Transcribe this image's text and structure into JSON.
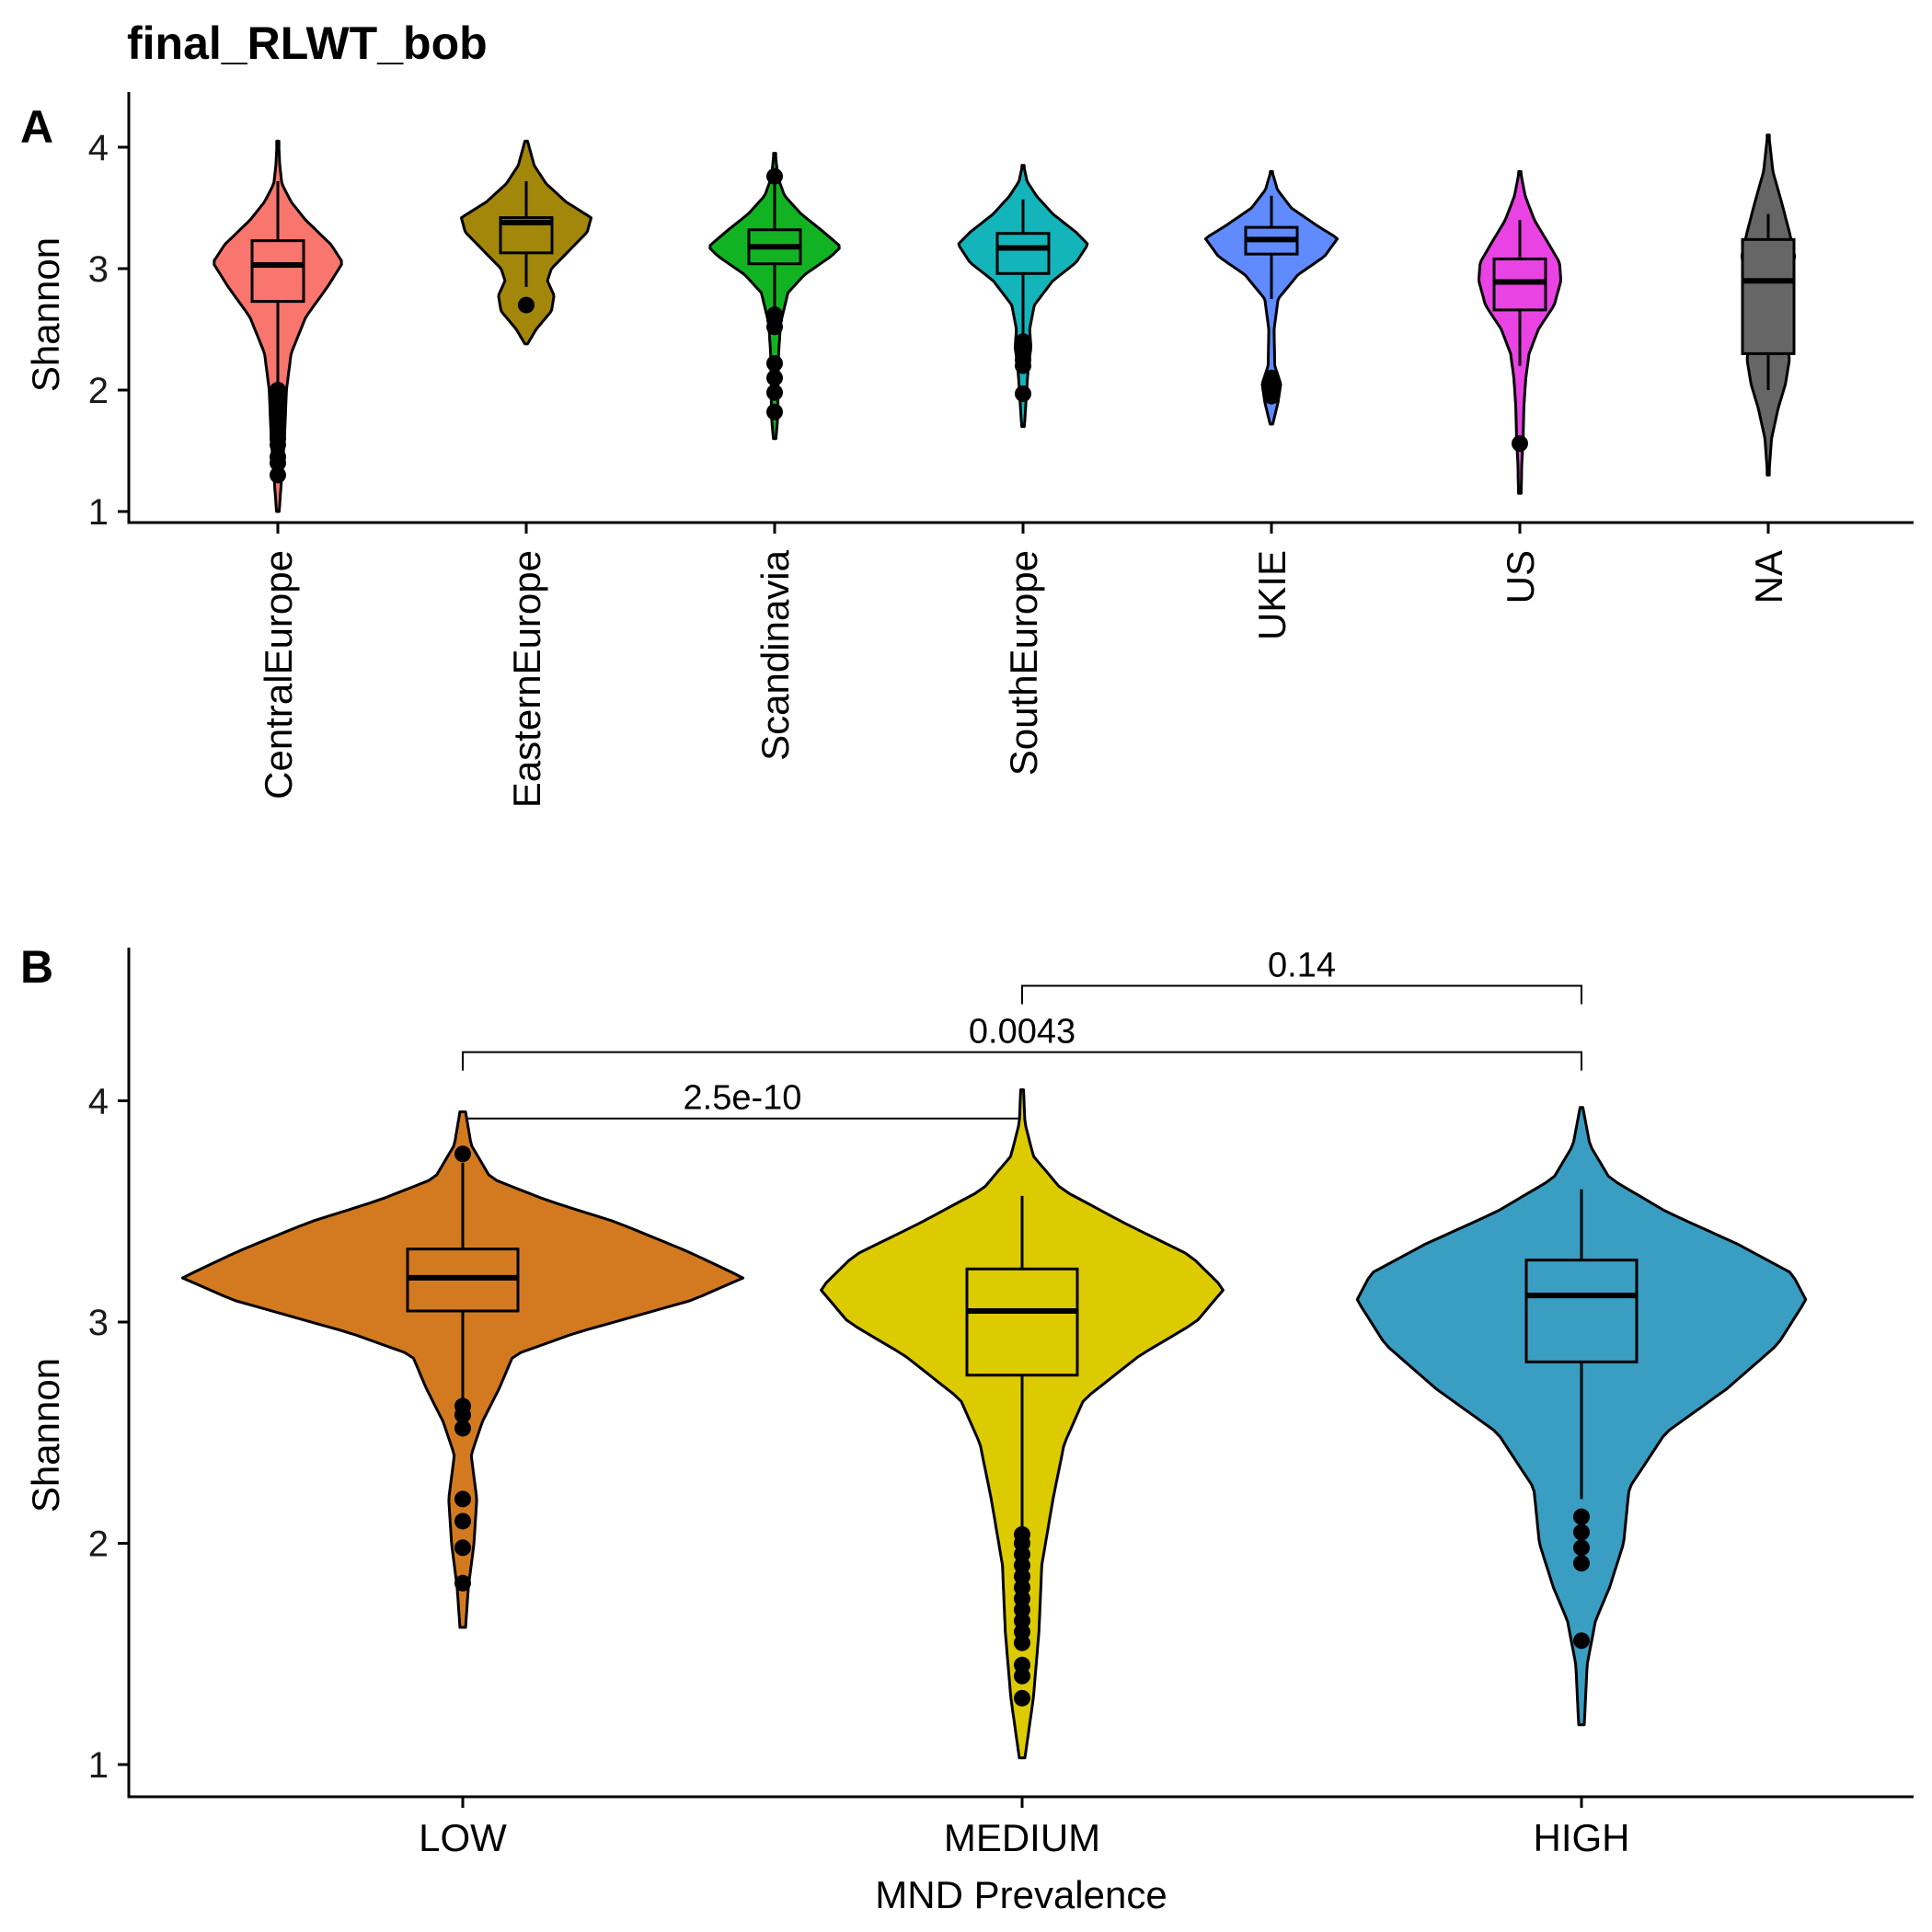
{
  "title": "final_RLWT_bob",
  "chart_data": [
    {
      "panel_label": "A",
      "type": "violin",
      "ylabel": "Shannon",
      "xlabel": "",
      "ylim": [
        0.95,
        4.2
      ],
      "yticks": [
        1,
        2,
        3,
        4
      ],
      "grid": false,
      "legend": "none",
      "categories": [
        "CentralEurope",
        "EasternEurope",
        "Scandinavia",
        "SouthEurope",
        "UKIE",
        "US",
        "NA"
      ],
      "groups": [
        {
          "name": "CentralEurope",
          "color": "#F8766D",
          "min": 1.0,
          "max": 4.05,
          "whisker_low": 2.05,
          "q1": 2.73,
          "median": 3.03,
          "q3": 3.23,
          "whisker_high": 3.72,
          "outliers": [
            1.3,
            1.4,
            1.45,
            1.55,
            1.6,
            1.65,
            1.7,
            1.75,
            1.8,
            1.85,
            1.9,
            1.95,
            2.0
          ],
          "density": [
            [
              1.0,
              0.02
            ],
            [
              1.3,
              0.06
            ],
            [
              1.6,
              0.1
            ],
            [
              2.0,
              0.13
            ],
            [
              2.3,
              0.2
            ],
            [
              2.6,
              0.42
            ],
            [
              2.85,
              0.75
            ],
            [
              3.05,
              0.98
            ],
            [
              3.2,
              0.8
            ],
            [
              3.4,
              0.42
            ],
            [
              3.55,
              0.2
            ],
            [
              3.7,
              0.06
            ],
            [
              3.85,
              0.03
            ],
            [
              4.05,
              0.01
            ]
          ]
        },
        {
          "name": "EasternEurope",
          "color": "#A3870A",
          "min": 2.38,
          "max": 4.05,
          "whisker_low": 2.85,
          "q1": 3.13,
          "median": 3.38,
          "q3": 3.42,
          "whisker_high": 3.72,
          "outliers": [
            2.7
          ],
          "density": [
            [
              2.38,
              0.02
            ],
            [
              2.5,
              0.15
            ],
            [
              2.65,
              0.38
            ],
            [
              2.78,
              0.42
            ],
            [
              2.9,
              0.32
            ],
            [
              3.0,
              0.38
            ],
            [
              3.15,
              0.65
            ],
            [
              3.3,
              0.92
            ],
            [
              3.42,
              0.98
            ],
            [
              3.55,
              0.6
            ],
            [
              3.7,
              0.3
            ],
            [
              3.85,
              0.12
            ],
            [
              4.05,
              0.02
            ]
          ]
        },
        {
          "name": "Scandinavia",
          "color": "#12B322",
          "min": 1.6,
          "max": 3.95,
          "whisker_low": 2.62,
          "q1": 3.04,
          "median": 3.18,
          "q3": 3.32,
          "whisker_high": 3.72,
          "outliers": [
            1.82,
            1.98,
            2.1,
            2.22,
            2.52,
            2.58,
            2.62,
            3.76
          ],
          "density": [
            [
              1.6,
              0.02
            ],
            [
              1.8,
              0.05
            ],
            [
              2.0,
              0.05
            ],
            [
              2.3,
              0.06
            ],
            [
              2.55,
              0.09
            ],
            [
              2.8,
              0.2
            ],
            [
              2.95,
              0.45
            ],
            [
              3.1,
              0.85
            ],
            [
              3.18,
              1.0
            ],
            [
              3.32,
              0.7
            ],
            [
              3.45,
              0.4
            ],
            [
              3.6,
              0.15
            ],
            [
              3.75,
              0.05
            ],
            [
              3.95,
              0.01
            ]
          ]
        },
        {
          "name": "SouthEurope",
          "color": "#14B5BA",
          "min": 1.7,
          "max": 3.85,
          "whisker_low": 2.45,
          "q1": 2.96,
          "median": 3.17,
          "q3": 3.29,
          "whisker_high": 3.57,
          "outliers": [
            1.97,
            2.2,
            2.25,
            2.3,
            2.35,
            2.4
          ],
          "density": [
            [
              1.7,
              0.02
            ],
            [
              1.95,
              0.05
            ],
            [
              2.2,
              0.08
            ],
            [
              2.35,
              0.12
            ],
            [
              2.5,
              0.1
            ],
            [
              2.7,
              0.17
            ],
            [
              2.9,
              0.45
            ],
            [
              3.05,
              0.8
            ],
            [
              3.2,
              0.98
            ],
            [
              3.3,
              0.8
            ],
            [
              3.45,
              0.45
            ],
            [
              3.6,
              0.2
            ],
            [
              3.72,
              0.06
            ],
            [
              3.85,
              0.01
            ]
          ]
        },
        {
          "name": "UKIE",
          "color": "#5F8BFF",
          "min": 1.72,
          "max": 3.8,
          "whisker_low": 2.75,
          "q1": 3.12,
          "median": 3.24,
          "q3": 3.34,
          "whisker_high": 3.6,
          "outliers": [
            1.95,
            2.0,
            2.05,
            2.1
          ],
          "density": [
            [
              1.72,
              0.02
            ],
            [
              1.9,
              0.1
            ],
            [
              2.05,
              0.14
            ],
            [
              2.2,
              0.05
            ],
            [
              2.5,
              0.04
            ],
            [
              2.75,
              0.1
            ],
            [
              2.95,
              0.4
            ],
            [
              3.1,
              0.8
            ],
            [
              3.25,
              1.0
            ],
            [
              3.35,
              0.7
            ],
            [
              3.5,
              0.3
            ],
            [
              3.65,
              0.09
            ],
            [
              3.8,
              0.01
            ]
          ]
        },
        {
          "name": "US",
          "color": "#E943E3",
          "min": 1.15,
          "max": 3.8,
          "whisker_low": 2.2,
          "q1": 2.66,
          "median": 2.89,
          "q3": 3.08,
          "whisker_high": 3.4,
          "outliers": [
            1.56
          ],
          "density": [
            [
              1.15,
              0.02
            ],
            [
              1.4,
              0.03
            ],
            [
              1.6,
              0.05
            ],
            [
              1.85,
              0.06
            ],
            [
              2.1,
              0.09
            ],
            [
              2.3,
              0.14
            ],
            [
              2.5,
              0.28
            ],
            [
              2.7,
              0.52
            ],
            [
              2.9,
              0.62
            ],
            [
              3.05,
              0.6
            ],
            [
              3.2,
              0.44
            ],
            [
              3.4,
              0.22
            ],
            [
              3.6,
              0.08
            ],
            [
              3.8,
              0.01
            ]
          ]
        },
        {
          "name": "NA",
          "color": "#666666",
          "min": 1.3,
          "max": 4.1,
          "whisker_low": 2.0,
          "q1": 2.3,
          "median": 2.9,
          "q3": 3.24,
          "whisker_high": 3.45,
          "outliers": [],
          "density": [
            [
              1.3,
              0.01
            ],
            [
              1.6,
              0.05
            ],
            [
              1.85,
              0.15
            ],
            [
              2.05,
              0.26
            ],
            [
              2.25,
              0.32
            ],
            [
              2.45,
              0.28
            ],
            [
              2.65,
              0.26
            ],
            [
              2.9,
              0.33
            ],
            [
              3.1,
              0.4
            ],
            [
              3.3,
              0.32
            ],
            [
              3.55,
              0.2
            ],
            [
              3.8,
              0.07
            ],
            [
              4.1,
              0.01
            ]
          ]
        }
      ]
    },
    {
      "panel_label": "B",
      "type": "violin",
      "ylabel": "Shannon",
      "xlabel": "MND Prevalence",
      "ylim": [
        0.92,
        4.67
      ],
      "yticks": [
        1,
        2,
        3,
        4
      ],
      "grid": false,
      "legend": "none",
      "categories": [
        "LOW",
        "MEDIUM",
        "HIGH"
      ],
      "groups": [
        {
          "name": "LOW",
          "color": "#D37A21",
          "min": 1.62,
          "max": 3.95,
          "whisker_low": 2.62,
          "q1": 3.05,
          "median": 3.2,
          "q3": 3.33,
          "whisker_high": 3.72,
          "outliers": [
            1.82,
            1.98,
            2.1,
            2.2,
            2.52,
            2.58,
            2.62,
            3.76
          ],
          "density": [
            [
              1.62,
              0.01
            ],
            [
              1.8,
              0.02
            ],
            [
              2.0,
              0.04
            ],
            [
              2.2,
              0.05
            ],
            [
              2.4,
              0.03
            ],
            [
              2.55,
              0.07
            ],
            [
              2.7,
              0.13
            ],
            [
              2.85,
              0.18
            ],
            [
              2.95,
              0.4
            ],
            [
              3.1,
              0.82
            ],
            [
              3.2,
              1.0
            ],
            [
              3.32,
              0.8
            ],
            [
              3.45,
              0.55
            ],
            [
              3.55,
              0.3
            ],
            [
              3.65,
              0.1
            ],
            [
              3.8,
              0.03
            ],
            [
              3.95,
              0.01
            ]
          ]
        },
        {
          "name": "MEDIUM",
          "color": "#DDCB02",
          "min": 1.03,
          "max": 4.05,
          "whisker_low": 2.05,
          "q1": 2.76,
          "median": 3.05,
          "q3": 3.24,
          "whisker_high": 3.57,
          "outliers": [
            1.3,
            1.4,
            1.45,
            1.55,
            1.6,
            1.65,
            1.7,
            1.75,
            1.8,
            1.85,
            1.9,
            1.95,
            2.0,
            2.04
          ],
          "density": [
            [
              1.03,
              0.01
            ],
            [
              1.3,
              0.04
            ],
            [
              1.6,
              0.06
            ],
            [
              1.9,
              0.07
            ],
            [
              2.2,
              0.11
            ],
            [
              2.45,
              0.15
            ],
            [
              2.65,
              0.22
            ],
            [
              2.85,
              0.42
            ],
            [
              3.0,
              0.62
            ],
            [
              3.15,
              0.72
            ],
            [
              3.3,
              0.6
            ],
            [
              3.45,
              0.36
            ],
            [
              3.6,
              0.14
            ],
            [
              3.75,
              0.04
            ],
            [
              3.9,
              0.01
            ],
            [
              4.05,
              0.005
            ]
          ]
        },
        {
          "name": "HIGH",
          "color": "#3A9EC2",
          "min": 1.18,
          "max": 3.97,
          "whisker_low": 2.2,
          "q1": 2.82,
          "median": 3.12,
          "q3": 3.28,
          "whisker_high": 3.6,
          "outliers": [
            1.56,
            1.91,
            1.98,
            2.05,
            2.12
          ],
          "density": [
            [
              1.18,
              0.01
            ],
            [
              1.45,
              0.02
            ],
            [
              1.65,
              0.05
            ],
            [
              1.8,
              0.1
            ],
            [
              2.0,
              0.15
            ],
            [
              2.25,
              0.17
            ],
            [
              2.5,
              0.3
            ],
            [
              2.7,
              0.52
            ],
            [
              2.9,
              0.7
            ],
            [
              3.1,
              0.8
            ],
            [
              3.22,
              0.75
            ],
            [
              3.35,
              0.56
            ],
            [
              3.5,
              0.3
            ],
            [
              3.65,
              0.1
            ],
            [
              3.8,
              0.03
            ],
            [
              3.97,
              0.005
            ]
          ]
        }
      ],
      "comparisons": [
        {
          "from": "LOW",
          "to": "MEDIUM",
          "label": "2.5e-10",
          "y": 3.92
        },
        {
          "from": "LOW",
          "to": "HIGH",
          "label": "0.0043",
          "y": 4.22
        },
        {
          "from": "MEDIUM",
          "to": "HIGH",
          "label": "0.14",
          "y": 4.52
        }
      ]
    }
  ]
}
